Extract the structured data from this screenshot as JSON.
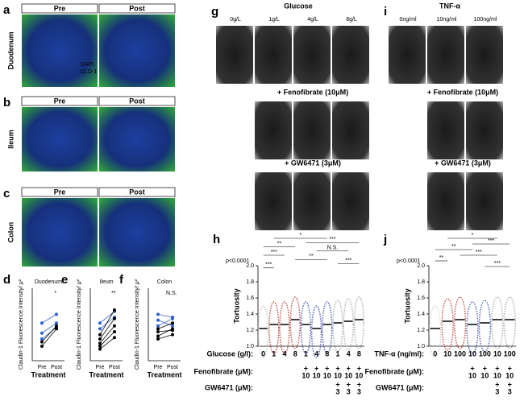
{
  "panels": {
    "a": {
      "label": "a",
      "row_label": "Duodenum",
      "columns": [
        "Pre",
        "Post"
      ],
      "legend": [
        "DAPI",
        "CLD-1"
      ]
    },
    "b": {
      "label": "b",
      "row_label": "Ileum",
      "columns": [
        "Pre",
        "Post"
      ]
    },
    "c": {
      "label": "c",
      "row_label": "Colon",
      "columns": [
        "Pre",
        "Post"
      ]
    },
    "g": {
      "label": "g",
      "title": "Glucose",
      "columns": [
        "0g/L",
        "1g/L",
        "4g/L",
        "8g/L"
      ],
      "rows": [
        "+ Fenofibrate (10μM)",
        "+ GW6471 (3μM)"
      ]
    },
    "i": {
      "label": "i",
      "title": "TNF-α",
      "columns": [
        "0ng/ml",
        "10ng/ml",
        "100ng/ml"
      ],
      "rows": [
        "+ Fenofibrate (10μM)",
        "+ GW6471 (3μM)"
      ]
    }
  },
  "chart_data": [
    {
      "type": "line",
      "label": "d",
      "title": "Duodenum",
      "ylabel": "Claudin-1 Fluorescence Intensity/ μ²",
      "xlabel": "Treatment",
      "annotation": "*",
      "x": [
        "Pre",
        "Post"
      ],
      "ylim": [
        0,
        5
      ],
      "series": [
        {
          "color": "#2f5fd0",
          "values": [
            2.6,
            3.2
          ]
        },
        {
          "color": "#2f5fd0",
          "values": [
            1.9,
            2.6
          ]
        },
        {
          "color": "#2f5fd0",
          "values": [
            1.5,
            2.3
          ]
        },
        {
          "color": "#000000",
          "values": [
            1.3,
            2.4
          ]
        },
        {
          "color": "#000000",
          "values": [
            1.0,
            2.2
          ]
        }
      ]
    },
    {
      "type": "line",
      "label": "e",
      "title": "Ileum",
      "ylabel": "Claudin-1 Fluorescence Intensity/ μ²",
      "xlabel": "Treatment",
      "annotation": "**",
      "x": [
        "Pre",
        "Post"
      ],
      "ylim": [
        0,
        5
      ],
      "series": [
        {
          "color": "#2f5fd0",
          "values": [
            2.6,
            3.4
          ]
        },
        {
          "color": "#2f5fd0",
          "values": [
            2.2,
            3.0
          ]
        },
        {
          "color": "#000000",
          "values": [
            1.8,
            3.5
          ]
        },
        {
          "color": "#000000",
          "values": [
            1.5,
            2.9
          ]
        },
        {
          "color": "#000000",
          "values": [
            1.2,
            2.4
          ]
        },
        {
          "color": "#000000",
          "values": [
            1.0,
            2.0
          ]
        },
        {
          "color": "#000000",
          "values": [
            0.8,
            1.6
          ]
        }
      ]
    },
    {
      "type": "line",
      "label": "f",
      "title": "Colon",
      "ylabel": "Claudin-1 Fluorescence Intensity/ μ²",
      "xlabel": "Treatment",
      "annotation": "N.S.",
      "x": [
        "Pre",
        "Post"
      ],
      "ylim": [
        0,
        5
      ],
      "series": [
        {
          "color": "#2f5fd0",
          "values": [
            3.2,
            3.0
          ]
        },
        {
          "color": "#2f5fd0",
          "values": [
            2.8,
            2.4
          ]
        },
        {
          "color": "#2f5fd0",
          "values": [
            2.4,
            2.9
          ]
        },
        {
          "color": "#000000",
          "values": [
            2.2,
            2.6
          ]
        },
        {
          "color": "#000000",
          "values": [
            2.0,
            2.1
          ]
        },
        {
          "color": "#000000",
          "values": [
            1.7,
            2.2
          ]
        },
        {
          "color": "#000000",
          "values": [
            1.5,
            1.8
          ]
        }
      ]
    },
    {
      "type": "strip",
      "label": "h",
      "annotation": "p<0.0001",
      "ylabel": "Tortuosity",
      "ylim": [
        1,
        2
      ],
      "yticks": [
        {
          "value": 1,
          "label": "1.0"
        },
        {
          "value": 1.2,
          "label": "1.2"
        },
        {
          "value": 1.4,
          "label": "1.4"
        },
        {
          "value": 1.6,
          "label": "1.6"
        },
        {
          "value": 1.8,
          "label": "1.8"
        },
        {
          "value": 2,
          "label": "2.0"
        }
      ],
      "values": [
        1.22,
        1.27,
        1.27,
        1.33,
        1.27,
        1.22,
        1.27,
        1.29,
        1.31,
        1.33
      ],
      "colors": [
        "#c8c8c8",
        "#b8231c",
        "#b8231c",
        "#b8231c",
        "#2136a8",
        "#2136a8",
        "#2136a8",
        "#9a9a9a",
        "#9a9a9a",
        "#9a9a9a"
      ],
      "significance": [
        "*",
        "***",
        "**",
        "N.S.",
        "***",
        "**",
        "***",
        "***"
      ],
      "rows": [
        {
          "label": "Glucose (g/l):",
          "values": [
            [
              "0"
            ],
            [
              "1"
            ],
            [
              "4"
            ],
            [
              "8"
            ],
            [
              "1"
            ],
            [
              "4"
            ],
            [
              "8"
            ],
            [
              "1"
            ],
            [
              "4"
            ],
            [
              "8"
            ]
          ]
        },
        {
          "label": "Fenofibrate (μM):",
          "values": [
            null,
            null,
            null,
            null,
            [
              "+",
              "10"
            ],
            [
              "+",
              "10"
            ],
            [
              "+",
              "10"
            ],
            [
              "+",
              "10"
            ],
            [
              "+",
              "10"
            ],
            [
              "+",
              "10"
            ]
          ]
        },
        {
          "label": "GW6471 (μM):",
          "values": [
            null,
            null,
            null,
            null,
            null,
            null,
            null,
            [
              "+",
              "3"
            ],
            [
              "+",
              "3"
            ],
            [
              "+",
              "3"
            ]
          ]
        }
      ]
    },
    {
      "type": "strip",
      "label": "j",
      "annotation": "p<0.0001",
      "ylabel": "Tortuosity",
      "ylim": [
        1,
        2
      ],
      "yticks": [
        {
          "value": 1,
          "label": "1.0"
        },
        {
          "value": 1.2,
          "label": "1.2"
        },
        {
          "value": 1.4,
          "label": "1.4"
        },
        {
          "value": 1.6,
          "label": "1.6"
        },
        {
          "value": 1.8,
          "label": "1.8"
        },
        {
          "value": 2,
          "label": "2.0"
        }
      ],
      "values": [
        1.22,
        1.31,
        1.33,
        1.27,
        1.29,
        1.33,
        1.33
      ],
      "colors": [
        "#c8c8c8",
        "#b8231c",
        "#b8231c",
        "#2136a8",
        "#2136a8",
        "#9a9a9a",
        "#9a9a9a"
      ],
      "significance": [
        "*",
        "***",
        "**",
        "***",
        "**",
        "***"
      ],
      "rows": [
        {
          "label": "TNF-α (ng/ml):",
          "values": [
            [
              "0"
            ],
            [
              "10"
            ],
            [
              "100"
            ],
            [
              "10"
            ],
            [
              "100"
            ],
            [
              "10"
            ],
            [
              "100"
            ]
          ]
        },
        {
          "label": "Fenofibrate (μM):",
          "values": [
            null,
            null,
            null,
            [
              "+",
              "10"
            ],
            [
              "+",
              "10"
            ],
            [
              "+",
              "10"
            ],
            [
              "+",
              "10"
            ]
          ]
        },
        {
          "label": "GW6471 (μM):",
          "values": [
            null,
            null,
            null,
            null,
            null,
            [
              "+",
              "3"
            ],
            [
              "+",
              "3"
            ]
          ]
        }
      ]
    }
  ]
}
